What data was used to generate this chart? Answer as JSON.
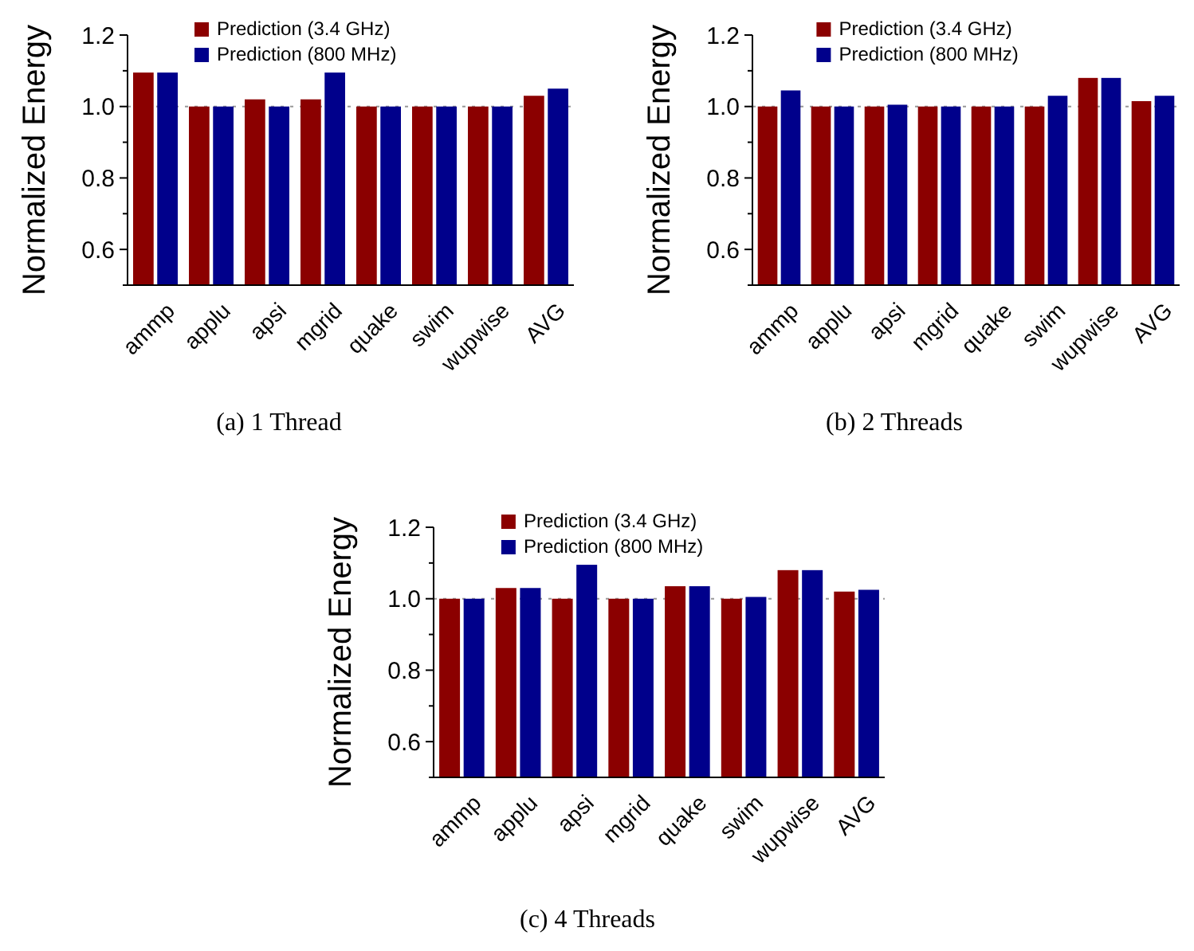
{
  "chart_data": [
    {
      "type": "bar",
      "title": "(a)  1 Thread",
      "ylabel": "Normalized Energy",
      "categories": [
        "ammp",
        "applu",
        "apsi",
        "mgrid",
        "quake",
        "swim",
        "wupwise",
        "AVG"
      ],
      "series": [
        {
          "name": "Prediction (3.4 GHz)",
          "color": "#8b0000",
          "values": [
            1.095,
            1.0,
            1.02,
            1.02,
            1.0,
            1.0,
            1.0,
            1.03
          ]
        },
        {
          "name": "Prediction (800 MHz)",
          "color": "#00008b",
          "values": [
            1.095,
            1.0,
            1.0,
            1.095,
            1.0,
            1.0,
            1.0,
            1.05
          ]
        }
      ],
      "ylim": [
        0.5,
        1.2
      ],
      "yticks": [
        {
          "value": 0.5,
          "label": null
        },
        0.6,
        {
          "value": 0.7,
          "label": null
        },
        0.8,
        {
          "value": 0.9,
          "label": null
        },
        {
          "value": 1.0,
          "label": "1.0"
        },
        {
          "value": 1.1,
          "label": null
        },
        1.2
      ],
      "ref_lines": [
        {
          "axis": "y",
          "value": 1.0,
          "color": "#999999",
          "line_style": "dotted"
        }
      ],
      "legend": "top",
      "grid": false
    },
    {
      "type": "bar",
      "title": "(b)  2 Threads",
      "ylabel": "Normalized Energy",
      "categories": [
        "ammp",
        "applu",
        "apsi",
        "mgrid",
        "quake",
        "swim",
        "wupwise",
        "AVG"
      ],
      "series": [
        {
          "name": "Prediction (3.4 GHz)",
          "color": "#8b0000",
          "values": [
            1.0,
            1.0,
            1.0,
            1.0,
            1.0,
            1.0,
            1.08,
            1.015
          ]
        },
        {
          "name": "Prediction (800 MHz)",
          "color": "#00008b",
          "values": [
            1.045,
            1.0,
            1.005,
            1.0,
            1.0,
            1.03,
            1.08,
            1.03
          ]
        }
      ],
      "ylim": [
        0.5,
        1.2
      ],
      "yticks": [
        {
          "value": 0.5,
          "label": null
        },
        0.6,
        {
          "value": 0.7,
          "label": null
        },
        0.8,
        {
          "value": 0.9,
          "label": null
        },
        {
          "value": 1.0,
          "label": "1.0"
        },
        {
          "value": 1.1,
          "label": null
        },
        1.2
      ],
      "ref_lines": [
        {
          "axis": "y",
          "value": 1.0,
          "color": "#999999",
          "line_style": "dotted"
        }
      ],
      "legend": "top",
      "grid": false
    },
    {
      "type": "bar",
      "title": "(c)  4 Threads",
      "ylabel": "Normalized Energy",
      "categories": [
        "ammp",
        "applu",
        "apsi",
        "mgrid",
        "quake",
        "swim",
        "wupwise",
        "AVG"
      ],
      "series": [
        {
          "name": "Prediction (3.4 GHz)",
          "color": "#8b0000",
          "values": [
            1.0,
            1.03,
            1.0,
            1.0,
            1.035,
            1.0,
            1.08,
            1.02
          ]
        },
        {
          "name": "Prediction (800 MHz)",
          "color": "#00008b",
          "values": [
            1.0,
            1.03,
            1.095,
            1.0,
            1.035,
            1.005,
            1.08,
            1.025
          ]
        }
      ],
      "ylim": [
        0.5,
        1.2
      ],
      "yticks": [
        {
          "value": 0.5,
          "label": null
        },
        0.6,
        {
          "value": 0.7,
          "label": null
        },
        0.8,
        {
          "value": 0.9,
          "label": null
        },
        {
          "value": 1.0,
          "label": "1.0"
        },
        {
          "value": 1.1,
          "label": null
        },
        1.2
      ],
      "ref_lines": [
        {
          "axis": "y",
          "value": 1.0,
          "color": "#999999",
          "line_style": "dotted"
        }
      ],
      "legend": "top",
      "grid": false
    }
  ]
}
